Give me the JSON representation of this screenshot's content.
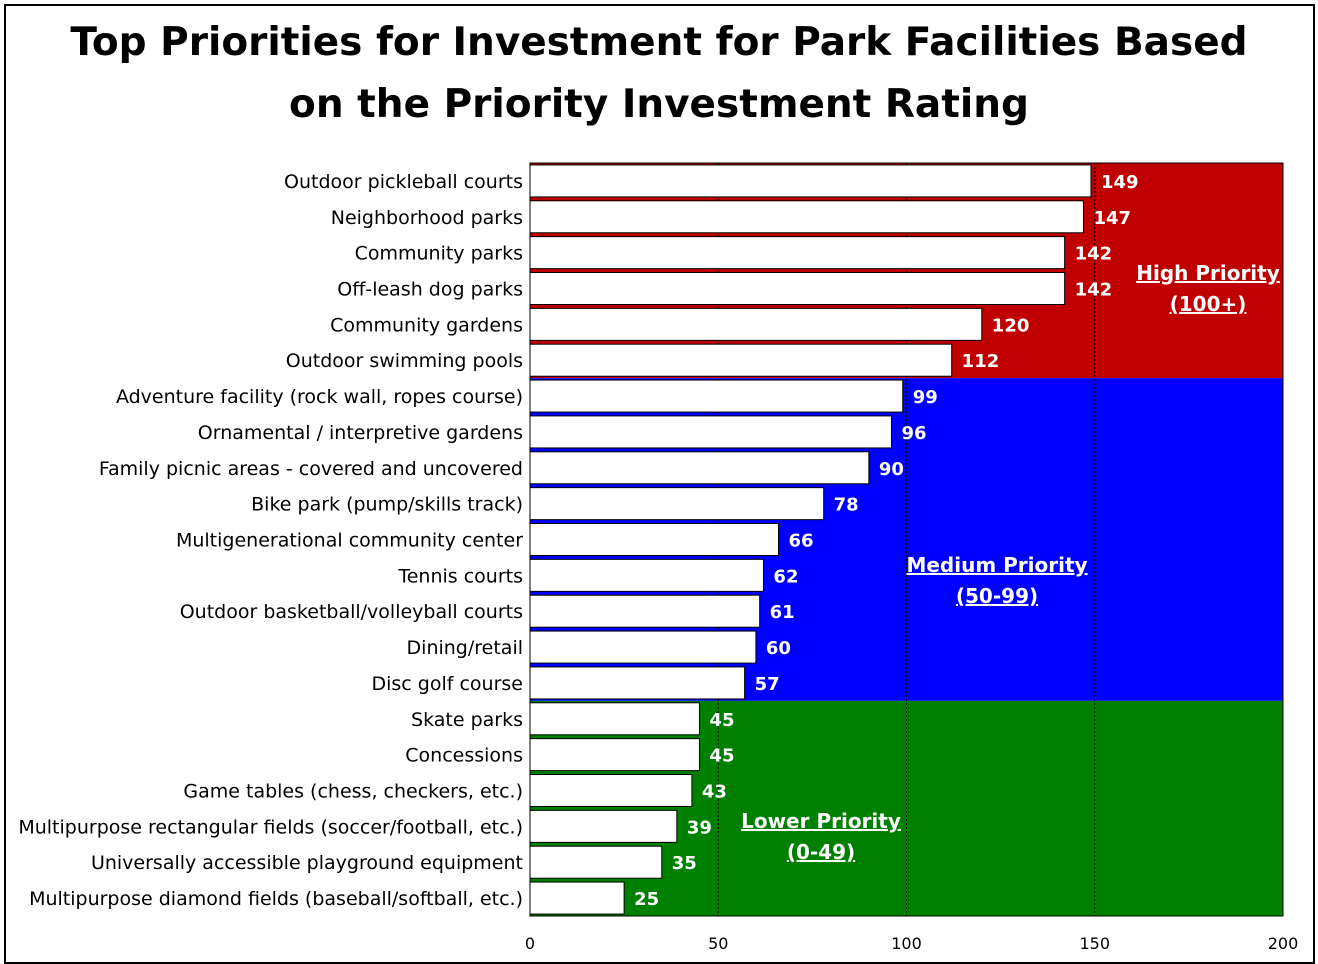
{
  "chart_data": {
    "type": "bar",
    "orientation": "horizontal",
    "title_lines": [
      "Top Priorities for Investment for Park Facilities Based",
      "on the Priority Investment Rating"
    ],
    "categories": [
      "Outdoor pickleball courts",
      "Neighborhood parks",
      "Community parks",
      "Off-leash dog parks",
      "Community gardens",
      "Outdoor swimming pools",
      "Adventure facility (rock wall, ropes course)",
      "Ornamental / interpretive gardens",
      "Family picnic areas - covered and uncovered",
      "Bike park (pump/skills track)",
      "Multigenerational community center",
      "Tennis courts",
      "Outdoor basketball/volleyball courts",
      "Dining/retail",
      "Disc golf course",
      "Skate parks",
      "Concessions",
      "Game tables (chess, checkers, etc.)",
      "Multipurpose rectangular fields (soccer/football, etc.)",
      "Universally accessible playground equipment",
      "Multipurpose diamond fields (baseball/softball, etc.)"
    ],
    "values": [
      149,
      147,
      142,
      142,
      120,
      112,
      99,
      96,
      90,
      78,
      66,
      62,
      61,
      60,
      57,
      45,
      45,
      43,
      39,
      35,
      25
    ],
    "xlim": [
      0,
      200
    ],
    "xticks": [
      0,
      50,
      100,
      150,
      200
    ],
    "grid": "vertical dotted at 50, 100, 150",
    "bar_color": "#ffffff",
    "zones": [
      {
        "line1": "High Priority",
        "line2": "(100+)",
        "color": "#c00000",
        "from_row": 0,
        "to_row": 5
      },
      {
        "line1": "Medium Priority",
        "line2": "(50-99)",
        "color": "#0000ff",
        "from_row": 6,
        "to_row": 14
      },
      {
        "line1": "Lower Priority",
        "line2": "(0-49)",
        "color": "#008000",
        "from_row": 15,
        "to_row": 20
      }
    ]
  }
}
